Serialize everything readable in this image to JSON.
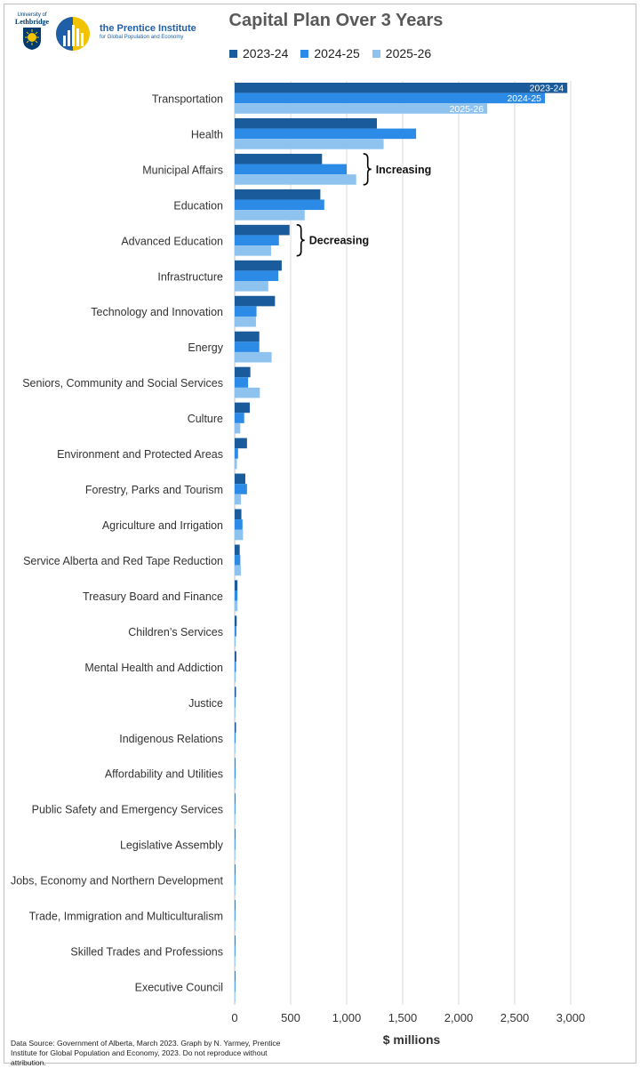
{
  "branding": {
    "uleth_line1": "University of",
    "uleth_line2": "Lethbridge",
    "prentice_name": "the Prentice Institute",
    "prentice_sub": "for Global Population and Economy"
  },
  "footer": {
    "source": "Data Source: Government of Alberta, March 2023. Graph by N. Yarmey, Prentice Institute for Global Population and Economy, 2023. Do not reproduce without attribution."
  },
  "colors": {
    "s2023": "#1a5b9c",
    "s2024": "#2b8be6",
    "s2025": "#8ec3ef",
    "grid": "#d9d9d9",
    "axis": "#bfbfbf"
  },
  "chart_data": {
    "type": "bar",
    "orientation": "horizontal",
    "title": "Capital Plan Over 3 Years",
    "xlabel": "$ millions",
    "ylabel": "",
    "xlim": [
      0,
      3000
    ],
    "xticks": [
      0,
      500,
      1000,
      1500,
      2000,
      2500,
      3000
    ],
    "xtick_labels": [
      "0",
      "500",
      "1,000",
      "1,500",
      "2,000",
      "2,500",
      "3,000"
    ],
    "grid": "vertical",
    "legend": "top",
    "categories": [
      "Transportation",
      "Health",
      "Municipal Affairs",
      "Education",
      "Advanced Education",
      "Infrastructure",
      "Technology and Innovation",
      "Energy",
      "Seniors, Community and Social Services",
      "Culture",
      "Environment and Protected Areas",
      "Forestry, Parks and Tourism",
      "Agriculture and Irrigation",
      "Service Alberta and Red Tape Reduction",
      "Treasury Board and Finance",
      "Children’s Services",
      "Mental Health and Addiction",
      "Justice",
      "Indigenous Relations",
      "Affordability and Utilities",
      "Public Safety and Emergency Services",
      "Legislative Assembly",
      "Jobs, Economy and Northern Development",
      "Trade, Immigration and Multiculturalism",
      "Skilled Trades and Professions",
      "Executive Council"
    ],
    "series": [
      {
        "name": "2023-24",
        "values": [
          2970,
          1270,
          780,
          765,
          490,
          420,
          360,
          220,
          140,
          135,
          110,
          95,
          60,
          45,
          25,
          18,
          15,
          12,
          12,
          5,
          4,
          2,
          1,
          1,
          1,
          1
        ]
      },
      {
        "name": "2024-25",
        "values": [
          2770,
          1620,
          1000,
          800,
          395,
          390,
          195,
          220,
          120,
          85,
          30,
          110,
          70,
          50,
          25,
          15,
          12,
          3,
          8,
          8,
          6,
          2,
          1,
          1,
          1,
          1
        ]
      },
      {
        "name": "2025-26",
        "values": [
          2255,
          1330,
          1085,
          625,
          325,
          300,
          190,
          330,
          225,
          50,
          20,
          55,
          75,
          55,
          25,
          10,
          10,
          2,
          6,
          8,
          5,
          2,
          1,
          1,
          1,
          1
        ]
      }
    ],
    "bar_labels": [
      "2023-24",
      "2024-25",
      "2025-26"
    ],
    "annotations": [
      {
        "text": "Increasing",
        "category": "Municipal Affairs"
      },
      {
        "text": "Decreasing",
        "category": "Advanced Education"
      }
    ]
  }
}
